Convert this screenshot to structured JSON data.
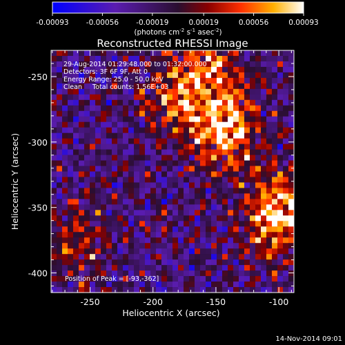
{
  "colorbar": {
    "tick_labels": [
      "-0.00093",
      "-0.00056",
      "-0.00019",
      "0.00019",
      "0.00056",
      "0.00093"
    ],
    "unit_label": "(photons cm",
    "unit_sup1": "-2",
    "unit_mid": " s",
    "unit_sup2": "-1",
    "unit_mid2": " asec",
    "unit_sup3": "-2",
    "unit_end": ")"
  },
  "chart_data": {
    "type": "heatmap",
    "title": "Reconstructed RHESSI Image",
    "xlabel": "Heliocentric X (arcsec)",
    "ylabel": "Heliocentric Y (arcsec)",
    "xlim": [
      -281,
      -88
    ],
    "ylim": [
      -415,
      -230
    ],
    "x_ticks": [
      -250,
      -200,
      -150,
      -100
    ],
    "y_ticks": [
      -250,
      -300,
      -350,
      -400
    ],
    "x_tick_labels": [
      "-250",
      "-200",
      "-150",
      "-100"
    ],
    "y_tick_labels": [
      "-250",
      "-300",
      "-350",
      "-400"
    ],
    "colorscale_range": [
      -0.00093,
      0.00093
    ],
    "peak_position": [
      -93,
      -362
    ],
    "bright_regions": [
      {
        "x": -143,
        "y": -290,
        "level": 0.85
      },
      {
        "x": -100,
        "y": -355,
        "level": 1.0
      },
      {
        "x": -180,
        "y": -268,
        "level": 0.55
      },
      {
        "x": -155,
        "y": -238,
        "level": 0.5
      },
      {
        "x": -260,
        "y": -375,
        "level": 0.45
      }
    ],
    "annotations": [
      "29-Aug-2014 01:29:48.000 to 01:32:00.000",
      "Detectors: 3F 6F 9F, Att 0",
      "Energy Range: 25.0 - 50.0 keV",
      "Clean     Total counts: 1.56E+03",
      "Position of Peak = [-93,-362]"
    ]
  },
  "footer": {
    "timestamp": "14-Nov-2014 09:01"
  }
}
